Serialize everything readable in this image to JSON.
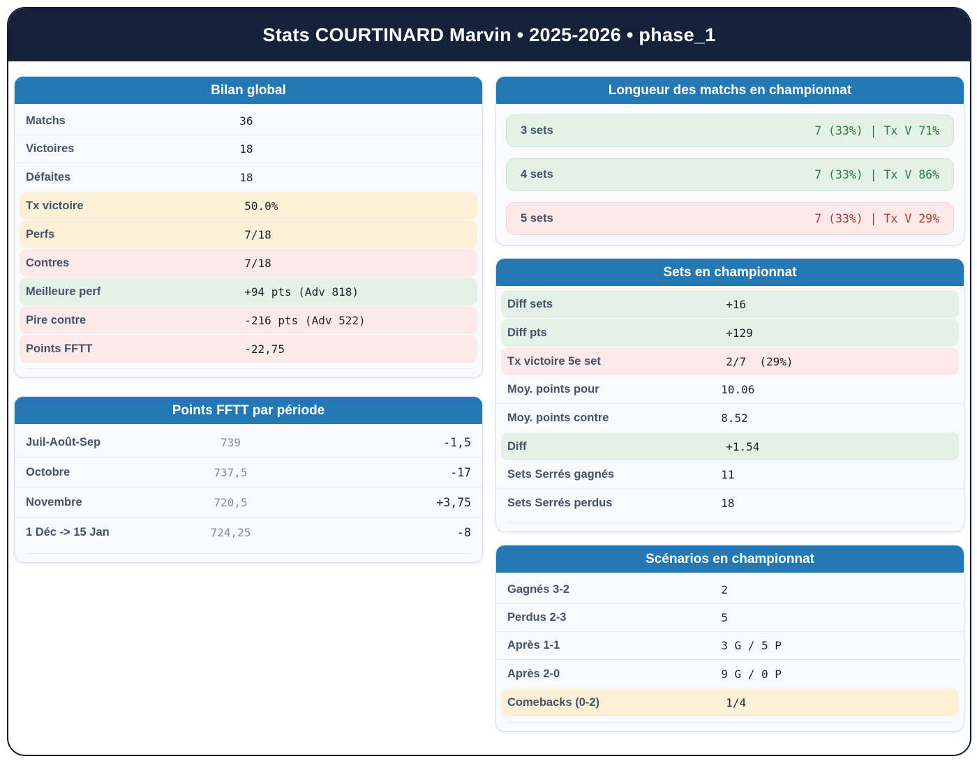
{
  "header": {
    "title": "Stats COURTINARD Marvin • 2025-2026 • phase_1"
  },
  "colors": {
    "frame_navy": "#16223c",
    "card_header_blue": "#2478b4",
    "highlight_yellow": "#fcf1d7",
    "highlight_pink": "#fce9e9",
    "highlight_green": "#e3f1e7",
    "text_green": "#2b7e3b",
    "text_red": "#c23434",
    "label_slate": "#44526b"
  },
  "cards": {
    "bilan": {
      "title": "Bilan global",
      "rows": [
        {
          "label": "Matchs",
          "value": "36",
          "variant": "plain"
        },
        {
          "label": "Victoires",
          "value": "18",
          "variant": "plain"
        },
        {
          "label": "Défaites",
          "value": "18",
          "variant": "plain"
        },
        {
          "label": "Tx victoire",
          "value": "50.0%",
          "variant": "yellow"
        },
        {
          "label": "Perfs",
          "value": "7/18",
          "variant": "yellow"
        },
        {
          "label": "Contres",
          "value": "7/18",
          "variant": "pink"
        },
        {
          "label": "Meilleure perf",
          "value": "+94 pts (Adv 818)",
          "variant": "green"
        },
        {
          "label": "Pire contre",
          "value": "-216 pts (Adv 522)",
          "variant": "pink"
        },
        {
          "label": "Points FFTT",
          "value": "-22,75",
          "variant": "pink"
        }
      ]
    },
    "periode": {
      "title": "Points FFTT par période",
      "rows": [
        {
          "label": "Juil-Août-Sep",
          "points": "739",
          "delta": "-1,5"
        },
        {
          "label": "Octobre",
          "points": "737,5",
          "delta": "-17"
        },
        {
          "label": "Novembre",
          "points": "720,5",
          "delta": "+3,75"
        },
        {
          "label": "1 Déc -> 15 Jan",
          "points": "724,25",
          "delta": "-8"
        }
      ]
    },
    "longueur": {
      "title": "Longueur des matchs en championnat",
      "rows": [
        {
          "label": "3 sets",
          "value": "7 (33%) | Tx V 71%",
          "variant": "green"
        },
        {
          "label": "4 sets",
          "value": "7 (33%) | Tx V 86%",
          "variant": "green"
        },
        {
          "label": "5 sets",
          "value": "7 (33%) | Tx V 29%",
          "variant": "red"
        }
      ]
    },
    "sets": {
      "title": "Sets en championnat",
      "rows": [
        {
          "label": "Diff sets",
          "value": "+16",
          "variant": "green"
        },
        {
          "label": "Diff pts",
          "value": "+129",
          "variant": "green"
        },
        {
          "label": "Tx victoire 5e set",
          "value": "2/7  (29%)",
          "variant": "pink"
        },
        {
          "label": "Moy. points pour",
          "value": "10.06",
          "variant": "plain"
        },
        {
          "label": "Moy. points contre",
          "value": "8.52",
          "variant": "plain"
        },
        {
          "label": "Diff",
          "value": "+1.54",
          "variant": "green"
        },
        {
          "label": "Sets Serrés gagnés",
          "value": "11",
          "variant": "plain"
        },
        {
          "label": "Sets Serrés perdus",
          "value": "18",
          "variant": "plain"
        }
      ]
    },
    "scenarios": {
      "title": "Scénarios en championnat",
      "rows": [
        {
          "label": "Gagnés 3-2",
          "value": "2",
          "variant": "plain"
        },
        {
          "label": "Perdus 2-3",
          "value": "5",
          "variant": "plain"
        },
        {
          "label": "Après 1-1",
          "value": "3 G / 5 P",
          "variant": "plain"
        },
        {
          "label": "Après 2-0",
          "value": "9 G / 0 P",
          "variant": "plain"
        },
        {
          "label": "Comebacks (0-2)",
          "value": "1/4",
          "variant": "yellow"
        }
      ]
    }
  }
}
